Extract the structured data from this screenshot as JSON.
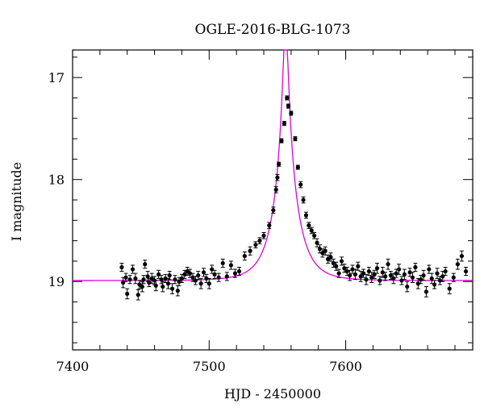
{
  "chart_data": {
    "type": "scatter",
    "title": "OGLE-2016-BLG-1073",
    "xlabel": "HJD - 2450000",
    "ylabel": "I magnitude",
    "xlim": [
      7400,
      7693
    ],
    "ylim": [
      19.67,
      16.73
    ],
    "y_inverted": true,
    "xticks": [
      7400,
      7500,
      7600
    ],
    "yticks": [
      17,
      18,
      19
    ],
    "x_minor_step": 20,
    "y_minor_step": 0.2,
    "grid": false,
    "legend": "none",
    "colors": {
      "points": "#000000",
      "model": "#e000e0",
      "frame": "#000000"
    },
    "model": {
      "t0": 7556.0,
      "tE": 16.0,
      "u0": 0.095,
      "baseline_mag": 18.99
    },
    "series": [
      {
        "kind": "photometry",
        "x": [
          7436,
          7437,
          7439,
          7440,
          7442,
          7444,
          7446,
          7448,
          7449,
          7451,
          7452,
          7453,
          7455,
          7456,
          7458,
          7460,
          7461,
          7463,
          7465,
          7466,
          7468,
          7470,
          7471,
          7473,
          7475,
          7477,
          7478,
          7480,
          7482,
          7484,
          7486,
          7488,
          7490,
          7492,
          7494,
          7496,
          7498,
          7500,
          7502,
          7504,
          7507,
          7510,
          7513,
          7516,
          7519,
          7522,
          7526,
          7530,
          7534,
          7537,
          7540,
          7544,
          7547,
          7549,
          7550,
          7551,
          7553,
          7555,
          7557,
          7558,
          7560,
          7563,
          7565,
          7567,
          7569,
          7571,
          7573,
          7575,
          7577,
          7579,
          7581,
          7583,
          7585,
          7587,
          7589,
          7591,
          7593,
          7595,
          7597,
          7599,
          7601,
          7603,
          7605,
          7607,
          7609,
          7611,
          7613,
          7615,
          7617,
          7619,
          7621,
          7623,
          7625,
          7627,
          7629,
          7631,
          7633,
          7635,
          7637,
          7639,
          7641,
          7643,
          7645,
          7647,
          7649,
          7651,
          7653,
          7655,
          7657,
          7659,
          7661,
          7663,
          7665,
          7667,
          7669,
          7671,
          7673,
          7676,
          7679,
          7682,
          7685,
          7688
        ],
        "y": [
          18.86,
          19.01,
          18.96,
          19.12,
          18.98,
          18.88,
          18.97,
          19.13,
          19.03,
          19.05,
          18.98,
          18.83,
          18.95,
          19.01,
          18.97,
          18.99,
          19.04,
          18.93,
          18.98,
          19.05,
          18.97,
          19.02,
          18.94,
          19.07,
          18.98,
          19.09,
          19.0,
          18.97,
          18.93,
          18.9,
          18.92,
          18.96,
          18.99,
          18.94,
          19.02,
          18.91,
          18.97,
          19.02,
          18.88,
          18.93,
          18.96,
          18.82,
          18.95,
          18.84,
          18.92,
          18.9,
          18.75,
          18.7,
          18.64,
          18.6,
          18.55,
          18.45,
          18.3,
          18.1,
          17.98,
          17.85,
          17.62,
          17.45,
          17.2,
          17.28,
          17.35,
          17.6,
          17.88,
          18.05,
          18.2,
          18.35,
          18.45,
          18.5,
          18.55,
          18.62,
          18.68,
          18.72,
          18.7,
          18.78,
          18.76,
          18.82,
          18.85,
          18.92,
          18.8,
          18.87,
          18.9,
          18.94,
          18.88,
          18.93,
          18.85,
          18.95,
          18.92,
          18.98,
          18.9,
          18.96,
          18.93,
          18.87,
          18.99,
          18.91,
          18.95,
          18.83,
          18.94,
          18.97,
          18.92,
          18.88,
          18.99,
          18.93,
          19.05,
          18.91,
          18.96,
          18.86,
          19.02,
          18.98,
          18.94,
          19.1,
          18.88,
          18.97,
          19.03,
          18.92,
          18.99,
          18.95,
          18.9,
          19.07,
          18.96,
          18.83,
          18.75,
          18.9
        ],
        "err": [
          0.04,
          0.05,
          0.04,
          0.05,
          0.04,
          0.04,
          0.05,
          0.05,
          0.04,
          0.05,
          0.04,
          0.04,
          0.05,
          0.04,
          0.05,
          0.04,
          0.05,
          0.04,
          0.04,
          0.05,
          0.04,
          0.05,
          0.04,
          0.05,
          0.04,
          0.05,
          0.04,
          0.04,
          0.04,
          0.04,
          0.04,
          0.04,
          0.04,
          0.04,
          0.05,
          0.04,
          0.04,
          0.05,
          0.04,
          0.04,
          0.04,
          0.04,
          0.04,
          0.04,
          0.04,
          0.04,
          0.04,
          0.04,
          0.03,
          0.03,
          0.03,
          0.03,
          0.03,
          0.03,
          0.03,
          0.02,
          0.02,
          0.02,
          0.02,
          0.02,
          0.02,
          0.02,
          0.02,
          0.03,
          0.03,
          0.03,
          0.03,
          0.03,
          0.03,
          0.04,
          0.04,
          0.04,
          0.04,
          0.04,
          0.04,
          0.04,
          0.04,
          0.04,
          0.04,
          0.04,
          0.04,
          0.05,
          0.04,
          0.05,
          0.04,
          0.05,
          0.04,
          0.05,
          0.04,
          0.05,
          0.04,
          0.05,
          0.04,
          0.05,
          0.04,
          0.05,
          0.04,
          0.05,
          0.04,
          0.05,
          0.04,
          0.05,
          0.05,
          0.04,
          0.05,
          0.04,
          0.05,
          0.04,
          0.05,
          0.05,
          0.04,
          0.05,
          0.04,
          0.05,
          0.04,
          0.05,
          0.04,
          0.05,
          0.04,
          0.05,
          0.05,
          0.04
        ]
      }
    ]
  }
}
